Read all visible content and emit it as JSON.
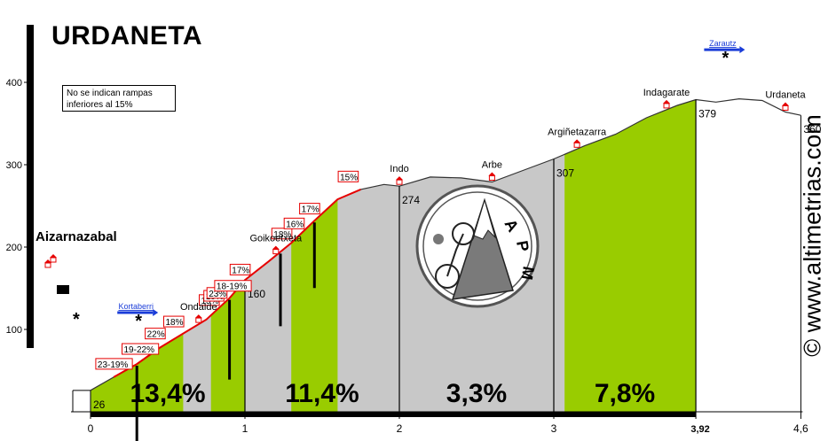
{
  "title": "URDANETA",
  "note": "No se indican rampas inferiores al 15%",
  "watermark": "© www.altimetrias.com",
  "logo": {
    "letters": [
      "A",
      "P",
      "M"
    ]
  },
  "start_label": "Aizarnazabal",
  "colors": {
    "green": "#99cc00",
    "gray": "#c8c8c8",
    "red": "#e60000",
    "blue": "#1a3cd8",
    "black": "#000000"
  },
  "chart_data": {
    "type": "area",
    "title": "URDANETA",
    "xlabel": "",
    "ylabel": "",
    "xlim": [
      0,
      4.6
    ],
    "ylim": [
      0,
      400
    ],
    "x_ticks": [
      "0",
      "1",
      "2",
      "3",
      "3,92",
      "4,6"
    ],
    "x_tick_values": [
      0,
      1,
      2,
      3,
      3.92,
      4.6
    ],
    "y_ticks": [
      100,
      200,
      300,
      400
    ],
    "profile": [
      [
        0,
        26
      ],
      [
        0.15,
        42
      ],
      [
        0.3,
        58
      ],
      [
        0.45,
        78
      ],
      [
        0.6,
        95
      ],
      [
        0.75,
        112
      ],
      [
        0.9,
        138
      ],
      [
        1.0,
        160
      ],
      [
        1.15,
        182
      ],
      [
        1.3,
        205
      ],
      [
        1.45,
        232
      ],
      [
        1.6,
        258
      ],
      [
        1.75,
        270
      ],
      [
        1.9,
        276
      ],
      [
        2.0,
        274
      ],
      [
        2.2,
        285
      ],
      [
        2.4,
        284
      ],
      [
        2.6,
        279
      ],
      [
        2.8,
        293
      ],
      [
        3.0,
        307
      ],
      [
        3.2,
        323
      ],
      [
        3.4,
        337
      ],
      [
        3.6,
        357
      ],
      [
        3.8,
        372
      ],
      [
        3.92,
        379
      ],
      [
        4.05,
        376
      ],
      [
        4.2,
        380
      ],
      [
        4.35,
        378
      ],
      [
        4.5,
        364
      ],
      [
        4.6,
        360
      ]
    ],
    "profile_end_x": 4.6,
    "segments": [
      {
        "x0": 0,
        "x1": 1,
        "gradient": "13,4%"
      },
      {
        "x0": 1,
        "x1": 2,
        "gradient": "11,4%"
      },
      {
        "x0": 2,
        "x1": 3,
        "gradient": "3,3%"
      },
      {
        "x0": 3,
        "x1": 3.92,
        "gradient": "7,8%"
      }
    ],
    "green_bands": [
      [
        0,
        0.6
      ],
      [
        0.78,
        1.0
      ],
      [
        1.3,
        1.6
      ],
      [
        3.07,
        3.92
      ]
    ],
    "dividers": [
      1,
      2,
      3,
      3.92
    ],
    "altitude_labels": [
      {
        "x": 0,
        "text": "26"
      },
      {
        "x": 1,
        "text": "160"
      },
      {
        "x": 2,
        "text": "274"
      },
      {
        "x": 3,
        "text": "307"
      },
      {
        "x": 3.92,
        "text": "379"
      },
      {
        "x": 4.6,
        "text": "360"
      }
    ],
    "places": [
      {
        "name": "Ondalde",
        "x": 0.7
      },
      {
        "name": "Goikoetxeta",
        "x": 1.2
      },
      {
        "name": "Indo",
        "x": 2.0
      },
      {
        "name": "Arbe",
        "x": 2.6
      },
      {
        "name": "Argiñetazarra",
        "x": 3.15
      },
      {
        "name": "Indagarate",
        "x": 3.73
      },
      {
        "name": "Urdaneta",
        "x": 4.5
      }
    ],
    "junctions": [
      {
        "name": "Kortaberri",
        "x": 0.3
      },
      {
        "name": "Zarautz",
        "x": 4.1
      }
    ],
    "ramps": [
      "23-19%",
      "19-22%",
      "22%",
      "18%",
      "15%",
      "19%",
      "23%",
      "18-19%",
      "17%",
      "18%",
      "16%",
      "17%",
      "15%"
    ]
  }
}
